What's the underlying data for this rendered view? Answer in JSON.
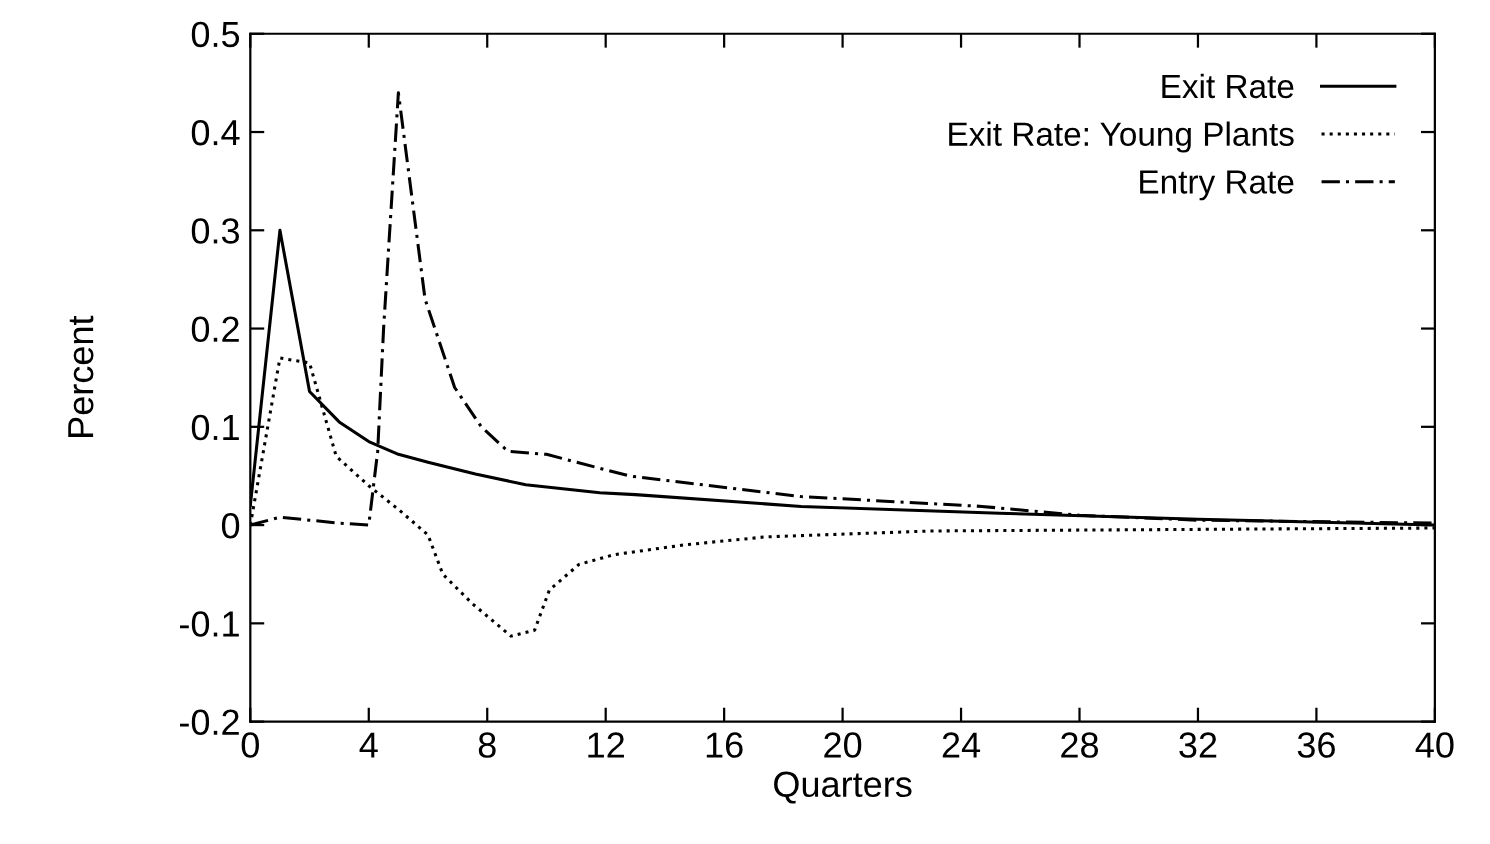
{
  "chart_data": {
    "type": "line",
    "xlabel": "Quarters",
    "ylabel": "Percent",
    "xlim": [
      0,
      40
    ],
    "ylim": [
      -0.2,
      0.5
    ],
    "xticks": [
      0,
      4,
      8,
      12,
      16,
      20,
      24,
      28,
      32,
      36,
      40
    ],
    "yticks": [
      {
        "value": -0.2,
        "label": "-0.2"
      },
      {
        "value": -0.1,
        "label": "-0.1"
      },
      0,
      0.1,
      0.2,
      0.3,
      0.4,
      0.5
    ],
    "grid": false,
    "legend": "top right",
    "marker": "none",
    "series": [
      {
        "name": "Exit Rate",
        "color": "#000000",
        "line_style": "solid",
        "x": [
          0,
          1,
          2,
          3,
          4,
          5,
          6,
          7.6,
          9.3,
          11.8,
          13,
          18.6,
          25.3,
          32,
          40
        ],
        "values": [
          0.02,
          0.3,
          0.136,
          0.105,
          0.085,
          0.072,
          0.064,
          0.052,
          0.041,
          0.033,
          0.031,
          0.019,
          0.012,
          0.006,
          0
        ]
      },
      {
        "name": "Exit Rate: Young Plants",
        "color": "#000000",
        "line_style": "dotted",
        "x": [
          0,
          1,
          2,
          2.9,
          4,
          5,
          6,
          6.5,
          7.5,
          8.8,
          9.6,
          10.1,
          11.1,
          12.3,
          14.7,
          17.4,
          23,
          34,
          40
        ],
        "values": [
          0,
          0.17,
          0.165,
          0.07,
          0.04,
          0.016,
          -0.01,
          -0.05,
          -0.08,
          -0.113,
          -0.107,
          -0.066,
          -0.04,
          -0.03,
          -0.02,
          -0.012,
          -0.006,
          -0.004,
          -0.003
        ]
      },
      {
        "name": "Entry Rate",
        "color": "#000000",
        "line_style": "dashdot",
        "x": [
          0,
          1,
          2,
          3,
          4,
          4.3,
          4.5,
          5,
          5.9,
          6.9,
          7.8,
          8.7,
          10,
          12.8,
          18.6,
          24.7,
          28,
          32,
          40
        ],
        "values": [
          0,
          0.008,
          0.005,
          0.002,
          0,
          0.075,
          0.2,
          0.44,
          0.23,
          0.14,
          0.1,
          0.075,
          0.072,
          0.05,
          0.029,
          0.019,
          0.01,
          0.005,
          0.002
        ]
      }
    ]
  }
}
